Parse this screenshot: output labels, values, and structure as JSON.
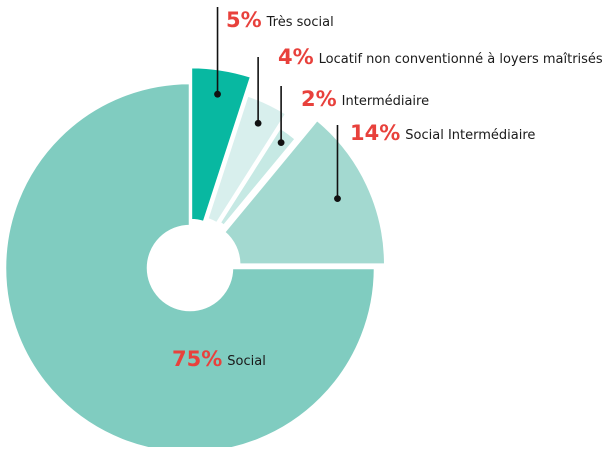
{
  "chart_data": {
    "type": "pie",
    "variant": "donut-exploded",
    "slices": [
      {
        "label": "Très social",
        "value": 5,
        "value_text": "5%",
        "color": "#08b8a1"
      },
      {
        "label": "Locatif non conventionné à loyers maîtrisés",
        "value": 4,
        "value_text": "4%",
        "color": "#d8efed"
      },
      {
        "label": "Intermédiaire",
        "value": 2,
        "value_text": "2%",
        "color": "#c6e9e4"
      },
      {
        "label": "Social Intermédiaire",
        "value": 14,
        "value_text": "14%",
        "color": "#a3d9d0"
      },
      {
        "label": "Social",
        "value": 75,
        "value_text": "75%",
        "color": "#80ccc0"
      }
    ],
    "start_angle": "12 o'clock",
    "direction": "clockwise",
    "legend": "inline-callouts",
    "percent_color": "#e8413c",
    "line_color": "#111111"
  }
}
